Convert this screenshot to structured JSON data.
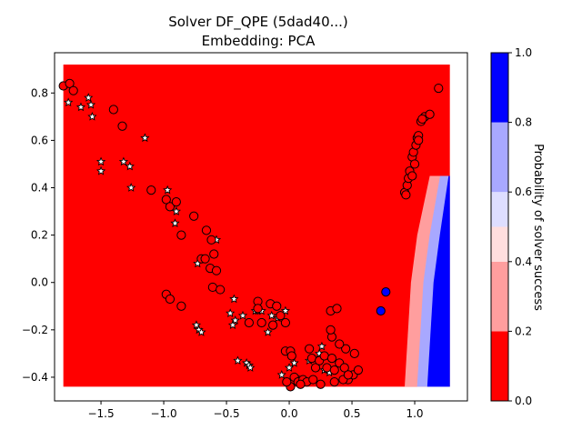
{
  "title_line1": "Solver DF_QPE (5dad40...)",
  "title_line2": "Embedding: PCA",
  "colorbar_label": "Probability of solver success",
  "chart_data": {
    "type": "scatter",
    "title": "Solver DF_QPE (5dad40...)\nEmbedding: PCA",
    "xlabel": "",
    "ylabel": "",
    "xlim": [
      -1.87,
      1.42
    ],
    "ylim": [
      -0.5,
      0.97
    ],
    "xticks": [
      -1.5,
      -1.0,
      -0.5,
      0.0,
      0.5,
      1.0
    ],
    "xtick_labels": [
      "−1.5",
      "−1.0",
      "−0.5",
      "0.0",
      "0.5",
      "1.0"
    ],
    "yticks": [
      -0.4,
      -0.2,
      0.0,
      0.2,
      0.4,
      0.6,
      0.8
    ],
    "ytick_labels": [
      "−0.4",
      "−0.2",
      "0.0",
      "0.2",
      "0.4",
      "0.6",
      "0.8"
    ],
    "grid": false,
    "background_field": {
      "description": "probability surface over grid",
      "x_range": [
        -1.8,
        1.28
      ],
      "y_range": [
        -0.44,
        0.92
      ],
      "boundary": [
        {
          "y": -0.44,
          "x_light": 0.92,
          "x_blue": 1.1
        },
        {
          "y": 0.0,
          "x_light": 0.97,
          "x_blue": 1.15
        },
        {
          "y": 0.2,
          "x_light": 1.02,
          "x_blue": 1.2
        },
        {
          "y": 0.45,
          "x_light": 1.12,
          "x_blue": 1.27
        }
      ],
      "colors": {
        "low": "#ff0000",
        "light_red": "#ff9e9e",
        "light_blue": "#a8a8ff",
        "high": "#0000ff"
      }
    },
    "colorbar": {
      "range": [
        0.0,
        1.0
      ],
      "ticks": [
        "0.0",
        "0.2",
        "0.4",
        "0.6",
        "0.8",
        "1.0"
      ],
      "bands": [
        {
          "from": 0.0,
          "to": 0.2,
          "color": "#ff0000"
        },
        {
          "from": 0.2,
          "to": 0.4,
          "color": "#ff9e9e"
        },
        {
          "from": 0.4,
          "to": 0.5,
          "color": "#ffdede"
        },
        {
          "from": 0.5,
          "to": 0.6,
          "color": "#dedeff"
        },
        {
          "from": 0.6,
          "to": 0.8,
          "color": "#a8a8ff"
        },
        {
          "from": 0.8,
          "to": 1.0,
          "color": "#0000ff"
        }
      ]
    },
    "series": [
      {
        "marker": "star",
        "color": "#ffffff",
        "edge": "#000000",
        "points": [
          [
            -1.76,
            0.76
          ],
          [
            -1.66,
            0.74
          ],
          [
            -1.6,
            0.78
          ],
          [
            -1.58,
            0.75
          ],
          [
            -1.57,
            0.7
          ],
          [
            -1.5,
            0.51
          ],
          [
            -1.5,
            0.47
          ],
          [
            -1.32,
            0.51
          ],
          [
            -1.27,
            0.49
          ],
          [
            -1.26,
            0.4
          ],
          [
            -1.15,
            0.61
          ],
          [
            -0.97,
            0.39
          ],
          [
            -0.91,
            0.25
          ],
          [
            -0.9,
            0.3
          ],
          [
            -0.74,
            -0.18
          ],
          [
            -0.72,
            -0.2
          ],
          [
            -0.7,
            -0.21
          ],
          [
            -0.73,
            0.08
          ],
          [
            -0.58,
            0.18
          ],
          [
            -0.47,
            -0.13
          ],
          [
            -0.44,
            -0.07
          ],
          [
            -0.43,
            -0.16
          ],
          [
            -0.45,
            -0.18
          ],
          [
            -0.41,
            -0.33
          ],
          [
            -0.37,
            -0.14
          ],
          [
            -0.34,
            -0.34
          ],
          [
            -0.32,
            -0.35
          ],
          [
            -0.31,
            -0.36
          ],
          [
            -0.27,
            -0.12
          ],
          [
            -0.25,
            -0.12
          ],
          [
            -0.22,
            -0.12
          ],
          [
            -0.17,
            -0.21
          ],
          [
            -0.14,
            -0.14
          ],
          [
            -0.09,
            -0.15
          ],
          [
            -0.06,
            -0.39
          ],
          [
            -0.03,
            -0.12
          ],
          [
            0.0,
            -0.36
          ],
          [
            0.04,
            -0.34
          ],
          [
            0.05,
            -0.4
          ],
          [
            0.12,
            -0.42
          ],
          [
            0.16,
            -0.33
          ],
          [
            0.24,
            -0.3
          ],
          [
            0.26,
            -0.27
          ],
          [
            0.28,
            -0.37
          ],
          [
            0.32,
            -0.38
          ]
        ]
      },
      {
        "marker": "circle",
        "color": "#ff0000",
        "edge": "#000000",
        "points": [
          [
            -1.8,
            0.83
          ],
          [
            -1.75,
            0.84
          ],
          [
            -1.72,
            0.81
          ],
          [
            -1.4,
            0.73
          ],
          [
            -1.33,
            0.66
          ],
          [
            -1.1,
            0.39
          ],
          [
            -0.98,
            0.35
          ],
          [
            -0.95,
            0.32
          ],
          [
            -0.9,
            0.34
          ],
          [
            -0.86,
            0.2
          ],
          [
            -0.76,
            0.28
          ],
          [
            -0.66,
            0.22
          ],
          [
            -0.62,
            0.18
          ],
          [
            -0.6,
            0.12
          ],
          [
            -0.7,
            0.1
          ],
          [
            -0.67,
            0.1
          ],
          [
            -0.63,
            0.06
          ],
          [
            -0.58,
            0.05
          ],
          [
            -0.61,
            -0.02
          ],
          [
            -0.55,
            -0.03
          ],
          [
            -0.98,
            -0.05
          ],
          [
            -0.95,
            -0.07
          ],
          [
            -0.86,
            -0.1
          ],
          [
            -0.25,
            -0.08
          ],
          [
            -0.25,
            -0.11
          ],
          [
            -0.22,
            -0.17
          ],
          [
            -0.15,
            -0.09
          ],
          [
            -0.1,
            -0.1
          ],
          [
            -0.07,
            -0.14
          ],
          [
            -0.03,
            -0.17
          ],
          [
            -0.32,
            -0.17
          ],
          [
            -0.13,
            -0.18
          ],
          [
            -0.03,
            -0.29
          ],
          [
            0.01,
            -0.29
          ],
          [
            0.02,
            -0.31
          ],
          [
            0.04,
            -0.4
          ],
          [
            0.07,
            -0.42
          ],
          [
            0.11,
            -0.41
          ],
          [
            0.14,
            -0.42
          ],
          [
            0.18,
            -0.32
          ],
          [
            0.16,
            -0.28
          ],
          [
            0.21,
            -0.36
          ],
          [
            0.24,
            -0.33
          ],
          [
            0.28,
            -0.31
          ],
          [
            0.3,
            -0.36
          ],
          [
            0.34,
            -0.32
          ],
          [
            0.36,
            -0.37
          ],
          [
            0.4,
            -0.34
          ],
          [
            0.44,
            -0.36
          ],
          [
            0.47,
            -0.41
          ],
          [
            0.51,
            -0.39
          ],
          [
            0.55,
            -0.37
          ],
          [
            0.52,
            -0.3
          ],
          [
            0.45,
            -0.28
          ],
          [
            0.4,
            -0.26
          ],
          [
            0.34,
            -0.23
          ],
          [
            0.33,
            -0.12
          ],
          [
            0.38,
            -0.11
          ],
          [
            0.33,
            -0.2
          ],
          [
            0.25,
            -0.43
          ],
          [
            0.19,
            -0.41
          ],
          [
            0.09,
            -0.43
          ],
          [
            0.01,
            -0.44
          ],
          [
            -0.02,
            -0.42
          ],
          [
            0.43,
            -0.41
          ],
          [
            0.36,
            -0.42
          ],
          [
            0.47,
            -0.39
          ],
          [
            0.92,
            0.38
          ],
          [
            0.93,
            0.37
          ],
          [
            0.94,
            0.41
          ],
          [
            0.95,
            0.44
          ],
          [
            0.96,
            0.47
          ],
          [
            0.98,
            0.53
          ],
          [
            0.99,
            0.55
          ],
          [
            1.01,
            0.58
          ],
          [
            1.02,
            0.61
          ],
          [
            1.03,
            0.62
          ],
          [
            1.05,
            0.68
          ],
          [
            1.08,
            0.7
          ],
          [
            1.12,
            0.71
          ],
          [
            1.19,
            0.82
          ],
          [
            0.98,
            0.45
          ],
          [
            1.0,
            0.5
          ],
          [
            1.03,
            0.6
          ],
          [
            1.06,
            0.69
          ]
        ]
      },
      {
        "marker": "circle",
        "color": "#0000ff",
        "edge": "#000000",
        "points": [
          [
            0.77,
            -0.04
          ],
          [
            0.73,
            -0.12
          ]
        ]
      }
    ]
  }
}
